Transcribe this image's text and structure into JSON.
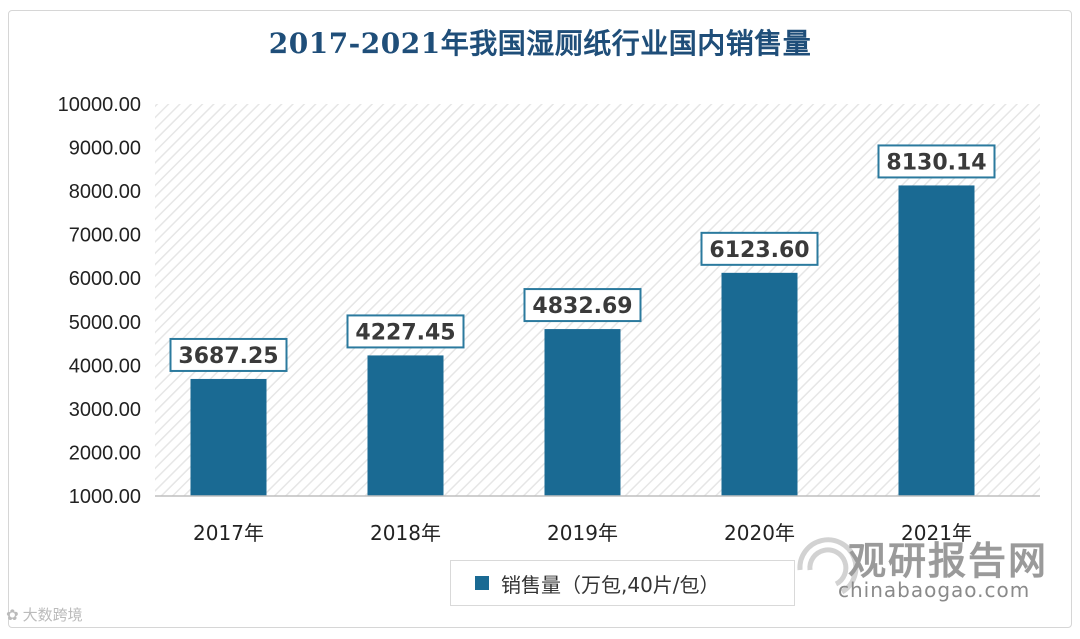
{
  "chart_data": {
    "type": "bar",
    "title": "2017-2021年我国湿厕纸行业国内销售量",
    "categories": [
      "2017年",
      "2018年",
      "2019年",
      "2020年",
      "2021年"
    ],
    "series": [
      {
        "name": "销售量（万包,40片/包）",
        "values": [
          3687.25,
          4227.45,
          4832.69,
          6123.6,
          8130.14
        ]
      }
    ],
    "data_labels": [
      "3687.25",
      "4227.45",
      "4832.69",
      "6123.60",
      "8130.14"
    ],
    "y_ticks": [
      "1000.00",
      "2000.00",
      "3000.00",
      "4000.00",
      "5000.00",
      "6000.00",
      "7000.00",
      "8000.00",
      "9000.00",
      "10000.00"
    ],
    "ylim": [
      1000,
      10000
    ],
    "xlabel": "",
    "ylabel": "",
    "legend_position": "bottom",
    "bar_color": "#1a6a93",
    "label_border_color": "#2b7a9e"
  },
  "watermark": {
    "brand_cn": "观研报告网",
    "brand_en": "chinabaogao.com",
    "corner_text": "大数跨境"
  }
}
